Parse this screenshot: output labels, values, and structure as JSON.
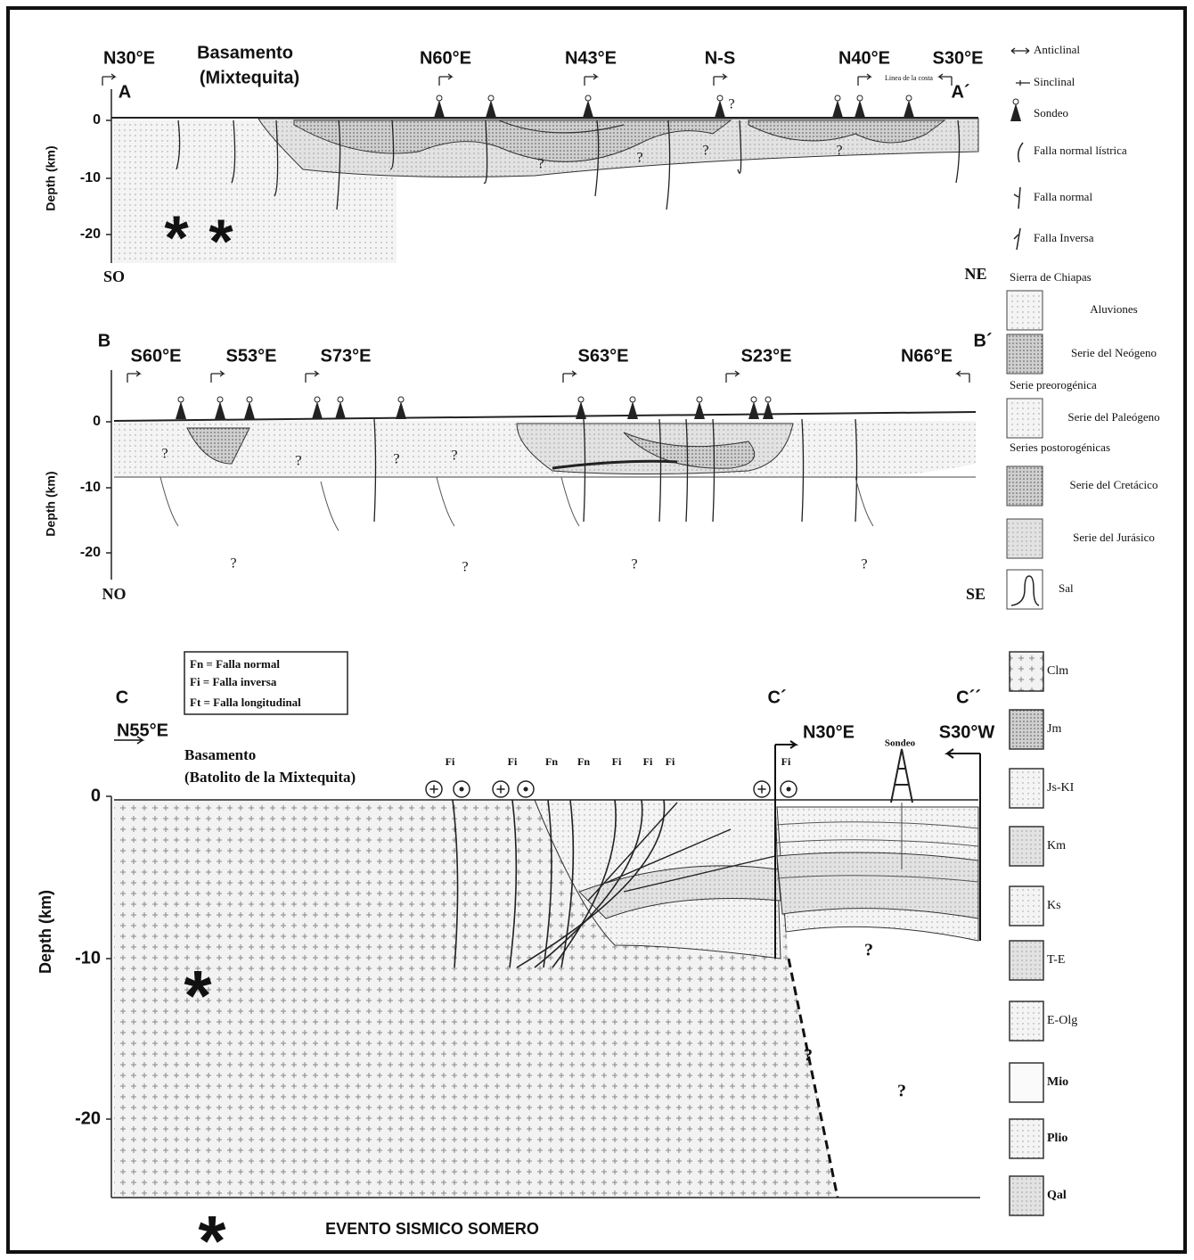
{
  "section_a": {
    "corner_left": "A",
    "corner_right": "A´",
    "directions": [
      "N30°E",
      "N60°E",
      "N43°E",
      "N-S",
      "N40°E",
      "S30°E"
    ],
    "basement": [
      "Basamento",
      "(Mixtequita)"
    ],
    "coast": "Linea de la costa",
    "axis_label": "Depth (km)",
    "ticks": [
      "0",
      "-10",
      "-20"
    ],
    "end_left": "SO",
    "end_right": "NE",
    "question_marks": [
      "?",
      "?",
      "?",
      "?",
      "?"
    ]
  },
  "section_b": {
    "corner_left": "B",
    "corner_right": "B´",
    "directions": [
      "S60°E",
      "S53°E",
      "S73°E",
      "S63°E",
      "S23°E",
      "N66°E"
    ],
    "axis_label": "Depth (km)",
    "ticks": [
      "0",
      "-10",
      "-20"
    ],
    "end_left": "NO",
    "end_right": "SE",
    "question_marks": [
      "?",
      "?",
      "?",
      "?",
      "?",
      "?",
      "?",
      "?"
    ]
  },
  "section_c": {
    "corner_labels": [
      "C",
      "C´",
      "C´´"
    ],
    "directions": [
      "N55°E",
      "N30°E",
      "S30°W"
    ],
    "basement": [
      "Basamento",
      "(Batolito de la Mixtequita)"
    ],
    "well": "Sondeo",
    "fault_labels": [
      "Fi",
      "Fi",
      "Fn",
      "Fn",
      "Fi",
      "Fi",
      "Fi",
      "Fi"
    ],
    "axis_label": "Depth (km)",
    "ticks": [
      "0",
      "-10",
      "-20"
    ],
    "question_marks": [
      "?",
      "?",
      "?"
    ]
  },
  "fault_key": [
    "Fn = Falla normal",
    "Fi = Falla inversa",
    "Ft = Falla longitudinal"
  ],
  "legend_top": [
    "Anticlinal",
    "Sinclinal",
    "Sondeo",
    "Falla normal lístrica",
    "Falla normal",
    "Falla Inversa",
    "Sierra de Chiapas",
    "Aluviones",
    "Serie del Neógeno",
    "Serie preorogénica",
    "Serie del Paleógeno",
    "Series postorogénicas",
    "Serie del Cretácico",
    "Serie del Jurásico",
    "Sal"
  ],
  "legend_bottom": [
    "Clm",
    "Jm",
    "Js-KI",
    "Km",
    "Ks",
    "T-E",
    "E-Olg",
    "Mio",
    "Plio",
    "Qal"
  ],
  "footer": "EVENTO SISMICO SOMERO"
}
